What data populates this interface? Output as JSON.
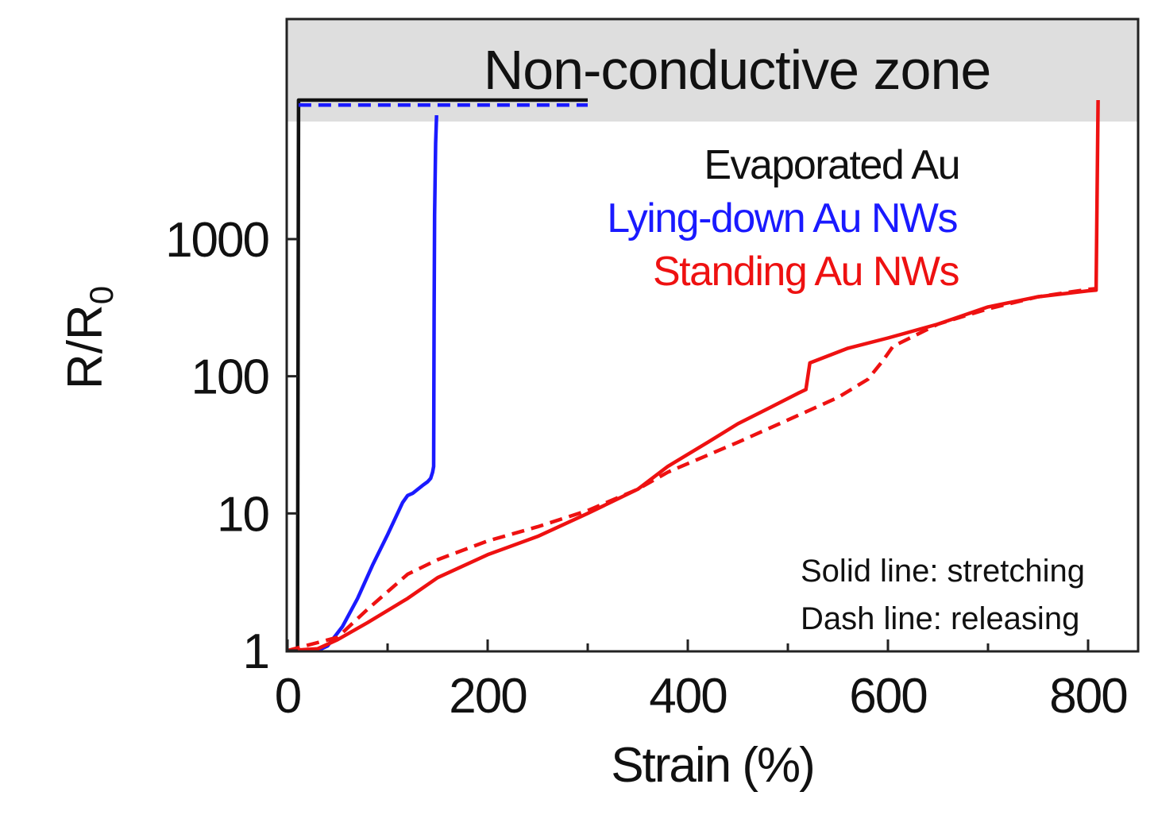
{
  "chart_data": {
    "type": "line",
    "xlabel": "Strain (%)",
    "ylabel_main": "R/R",
    "ylabel_sub": "0",
    "x_range": [
      0,
      850
    ],
    "y_scale": "log",
    "x_ticks": [
      0,
      200,
      400,
      600,
      800
    ],
    "y_ticks": [
      1,
      10,
      100,
      1000
    ],
    "zone_label": "Non-conductive zone",
    "legend": [
      {
        "label": "Evaporated Au",
        "color": "#111111"
      },
      {
        "label": "Lying-down Au NWs",
        "color": "#1a1aff"
      },
      {
        "label": "Standing Au NWs",
        "color": "#ee1111"
      }
    ],
    "notes": [
      "Solid line: stretching",
      "Dash line: releasing"
    ],
    "series": [
      {
        "name": "Evaporated Au",
        "color": "#111111",
        "dash": false,
        "points": [
          [
            0,
            1
          ],
          [
            8,
            1
          ],
          [
            10,
            1.05
          ],
          [
            11,
            11000
          ],
          [
            300,
            11000
          ]
        ]
      },
      {
        "name": "Lying-down Au NWs",
        "color": "#1a1aff",
        "dash": false,
        "points": [
          [
            0,
            1
          ],
          [
            30,
            1
          ],
          [
            40,
            1.08
          ],
          [
            55,
            1.5
          ],
          [
            70,
            2.4
          ],
          [
            85,
            4.2
          ],
          [
            100,
            7
          ],
          [
            115,
            12
          ],
          [
            120,
            13.5
          ],
          [
            125,
            14
          ],
          [
            135,
            16
          ],
          [
            140,
            17
          ],
          [
            143,
            18
          ],
          [
            145,
            20
          ],
          [
            146,
            22
          ],
          [
            146.5,
            300
          ],
          [
            147,
            1500
          ],
          [
            148,
            5000
          ],
          [
            149,
            8000
          ]
        ]
      },
      {
        "name": "Lying-down Au NWs",
        "color": "#1a1aff",
        "dash": true,
        "points": [
          [
            11,
            9500
          ],
          [
            300,
            9500
          ]
        ]
      },
      {
        "name": "Standing Au NWs",
        "color": "#ee1111",
        "dash": false,
        "points": [
          [
            0,
            1
          ],
          [
            30,
            1.03
          ],
          [
            50,
            1.2
          ],
          [
            80,
            1.6
          ],
          [
            120,
            2.4
          ],
          [
            150,
            3.4
          ],
          [
            200,
            5
          ],
          [
            250,
            6.8
          ],
          [
            300,
            10
          ],
          [
            350,
            15
          ],
          [
            380,
            22
          ],
          [
            420,
            33
          ],
          [
            450,
            45
          ],
          [
            480,
            58
          ],
          [
            510,
            75
          ],
          [
            518,
            80
          ],
          [
            522,
            125
          ],
          [
            560,
            160
          ],
          [
            600,
            190
          ],
          [
            650,
            240
          ],
          [
            700,
            320
          ],
          [
            750,
            380
          ],
          [
            800,
            420
          ],
          [
            808,
            425
          ],
          [
            810,
            12000
          ]
        ]
      },
      {
        "name": "Standing Au NWs",
        "color": "#ee1111",
        "dash": true,
        "points": [
          [
            0,
            1
          ],
          [
            50,
            1.25
          ],
          [
            80,
            2
          ],
          [
            120,
            3.6
          ],
          [
            150,
            4.6
          ],
          [
            200,
            6.3
          ],
          [
            250,
            8
          ],
          [
            300,
            10.5
          ],
          [
            350,
            15
          ],
          [
            380,
            20
          ],
          [
            450,
            33
          ],
          [
            500,
            48
          ],
          [
            550,
            70
          ],
          [
            580,
            95
          ],
          [
            595,
            130
          ],
          [
            605,
            165
          ],
          [
            650,
            240
          ],
          [
            700,
            310
          ],
          [
            750,
            380
          ],
          [
            800,
            430
          ],
          [
            808,
            435
          ]
        ]
      }
    ]
  }
}
